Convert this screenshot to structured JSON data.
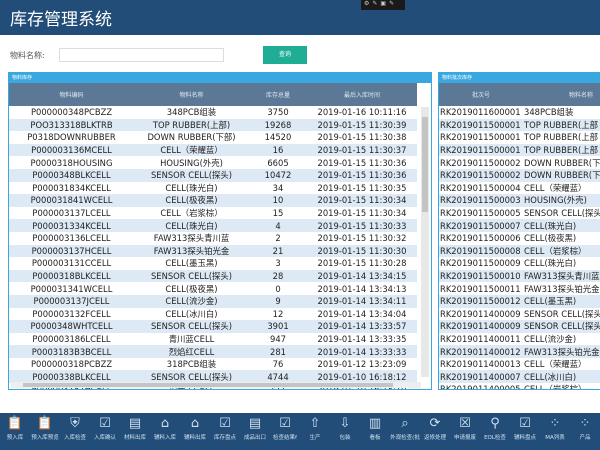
{
  "app": {
    "title": "库存管理系统"
  },
  "search": {
    "label": "物料名称:",
    "value": "",
    "button": "查询"
  },
  "left": {
    "title": "物料库存",
    "columns": [
      "物料编码",
      "物料名称",
      "库存总量",
      "最后入库时间"
    ],
    "rows": [
      [
        "P000000348PCBZZ",
        "348PCB组装",
        "3750",
        "2019-01-16 10:11:16"
      ],
      [
        "POO313318BLKTRB",
        "TOP RUBBER(上部)",
        "19268",
        "2019-01-15 11:30:39"
      ],
      [
        "P0318DOWNRUBBER",
        "DOWN RUBBER(下部)",
        "14520",
        "2019-01-15 11:30:38"
      ],
      [
        "P000003136MCELL",
        "CELL（荣耀蓝）",
        "16",
        "2019-01-15 11:30:37"
      ],
      [
        "P0000318HOUSING",
        "HOUSING(外壳)",
        "6605",
        "2019-01-15 11:30:36"
      ],
      [
        "P0000348BLKCELL",
        "SENSOR CELL(探头)",
        "10472",
        "2019-01-15 11:30:36"
      ],
      [
        "P000031834KCELL",
        "CELL(珠光白)",
        "34",
        "2019-01-15 11:30:35"
      ],
      [
        "P000031841WCELL",
        "CELL(极夜黑)",
        "10",
        "2019-01-15 11:30:34"
      ],
      [
        "P000003137LCELL",
        "CELL（岩浆棕）",
        "15",
        "2019-01-15 11:30:34"
      ],
      [
        "P000031334KCELL",
        "CELL(珠光白)",
        "4",
        "2019-01-15 11:30:33"
      ],
      [
        "P000003136LCELL",
        "FAW313探头青川蓝",
        "2",
        "2019-01-15 11:30:32"
      ],
      [
        "P000003137HCELL",
        "FAW313探头铂光金",
        "21",
        "2019-01-15 11:30:30"
      ],
      [
        "P000003131CCELL",
        "CELL(墨玉黑)",
        "3",
        "2019-01-15 11:30:28"
      ],
      [
        "P0000318BLKCELL",
        "SENSOR CELL(探头)",
        "28",
        "2019-01-14 13:34:15"
      ],
      [
        "P000031341WCELL",
        "CELL(极夜黑)",
        "0",
        "2019-01-14 13:34:13"
      ],
      [
        "P000003137JCELL",
        "CELL(流沙金)",
        "9",
        "2019-01-14 13:34:11"
      ],
      [
        "P000003132FCELL",
        "CELL(冰川白)",
        "12",
        "2019-01-14 13:34:04"
      ],
      [
        "P0000348WHTCELL",
        "SENSOR CELL(探头)",
        "3901",
        "2019-01-14 13:33:57"
      ],
      [
        "P000003186LCELL",
        "青川蓝CELL",
        "947",
        "2019-01-14 13:33:35"
      ],
      [
        "P0003183B3BCELL",
        "烈焰红CELL",
        "281",
        "2019-01-14 13:33:33"
      ],
      [
        "P000000318PCBZZ",
        "318PCB组装",
        "76",
        "2019-01-12 13:23:09"
      ],
      [
        "P0000338BLKCELL",
        "SENSOR CELL(探头)",
        "4744",
        "2019-01-10 16:18:12"
      ],
      [
        "P000003187HCELL",
        "铂光金CELL",
        "171",
        "2019-01-10 16:18:10"
      ],
      [
        "P000000338PCBZZ",
        "338PCB组装",
        "0",
        "2019-01-08 08:38:05"
      ]
    ]
  },
  "right": {
    "title": "物料批次库存",
    "columns": [
      "批次号",
      "物料名称"
    ],
    "rows": [
      [
        "RK2019011600001",
        "348PCB组装"
      ],
      [
        "RK2019011500001",
        "TOP RUBBER(上部"
      ],
      [
        "RK2019011500001",
        "TOP RUBBER(上部"
      ],
      [
        "RK2019011500001",
        "TOP RUBBER(上部"
      ],
      [
        "RK2019011500002",
        "DOWN RUBBER(下"
      ],
      [
        "RK2019011500002",
        "DOWN RUBBER(下"
      ],
      [
        "RK2019011500004",
        "CELL（荣耀蓝）"
      ],
      [
        "RK2019011500003",
        "HOUSING(外壳)"
      ],
      [
        "RK2019011500005",
        "SENSOR CELL(探头"
      ],
      [
        "RK2019011500007",
        "CELL(珠光白)"
      ],
      [
        "RK2019011500006",
        "CELL(极夜黑)"
      ],
      [
        "RK2019011500008",
        "CELL（岩浆棕）"
      ],
      [
        "RK2019011500009",
        "CELL(珠光白)"
      ],
      [
        "RK2019011500010",
        "FAW313探头青川蓝"
      ],
      [
        "RK2019011500011",
        "FAW313探头铂光金"
      ],
      [
        "RK2019011500012",
        "CELL(墨玉黑)"
      ],
      [
        "RK2019011400009",
        "SENSOR CELL(探头"
      ],
      [
        "RK2019011400009",
        "SENSOR CELL(探头"
      ],
      [
        "RK2019011400011",
        "CELL(流沙金)"
      ],
      [
        "RK2019011400012",
        "FAW313探头铂光金"
      ],
      [
        "RK2019011400013",
        "CELL（荣耀蓝）"
      ],
      [
        "RK2019011400007",
        "CELL(冰川白)"
      ],
      [
        "RK2019011400005",
        "CELL（岩浆棕）"
      ],
      [
        "RK2019011400004",
        "SENSOR CELL(探头"
      ],
      [
        "RK2019011400004",
        "SENSOR CELL(探头"
      ]
    ]
  },
  "toolbar": [
    {
      "label": "预入库",
      "icon": "clipboard-upload"
    },
    {
      "label": "预入库预览",
      "icon": "clipboard-download"
    },
    {
      "label": "入库检查",
      "icon": "shield"
    },
    {
      "label": "入库确认",
      "icon": "clipboard-check"
    },
    {
      "label": "材料出库",
      "icon": "document-chart"
    },
    {
      "label": "辅料入库",
      "icon": "warehouse"
    },
    {
      "label": "辅料出库",
      "icon": "warehouse"
    },
    {
      "label": "库存盘点",
      "icon": "clipboard-check"
    },
    {
      "label": "成品出口",
      "icon": "document-chart"
    },
    {
      "label": "检查结果f",
      "icon": "clipboard-check"
    },
    {
      "label": "生产",
      "icon": "arrow-up-circle"
    },
    {
      "label": "包装",
      "icon": "arrow-down-circle"
    },
    {
      "label": "看板",
      "icon": "barcode"
    },
    {
      "label": "外观检查(批",
      "icon": "document-search"
    },
    {
      "label": "返修处理",
      "icon": "refresh"
    },
    {
      "label": "申请报废",
      "icon": "close-box"
    },
    {
      "label": "EOL检查",
      "icon": "microscope"
    },
    {
      "label": "辅料盘点",
      "icon": "clipboard-check"
    },
    {
      "label": "MA列表",
      "icon": "grid-ox"
    },
    {
      "label": "产品",
      "icon": "grid"
    }
  ]
}
